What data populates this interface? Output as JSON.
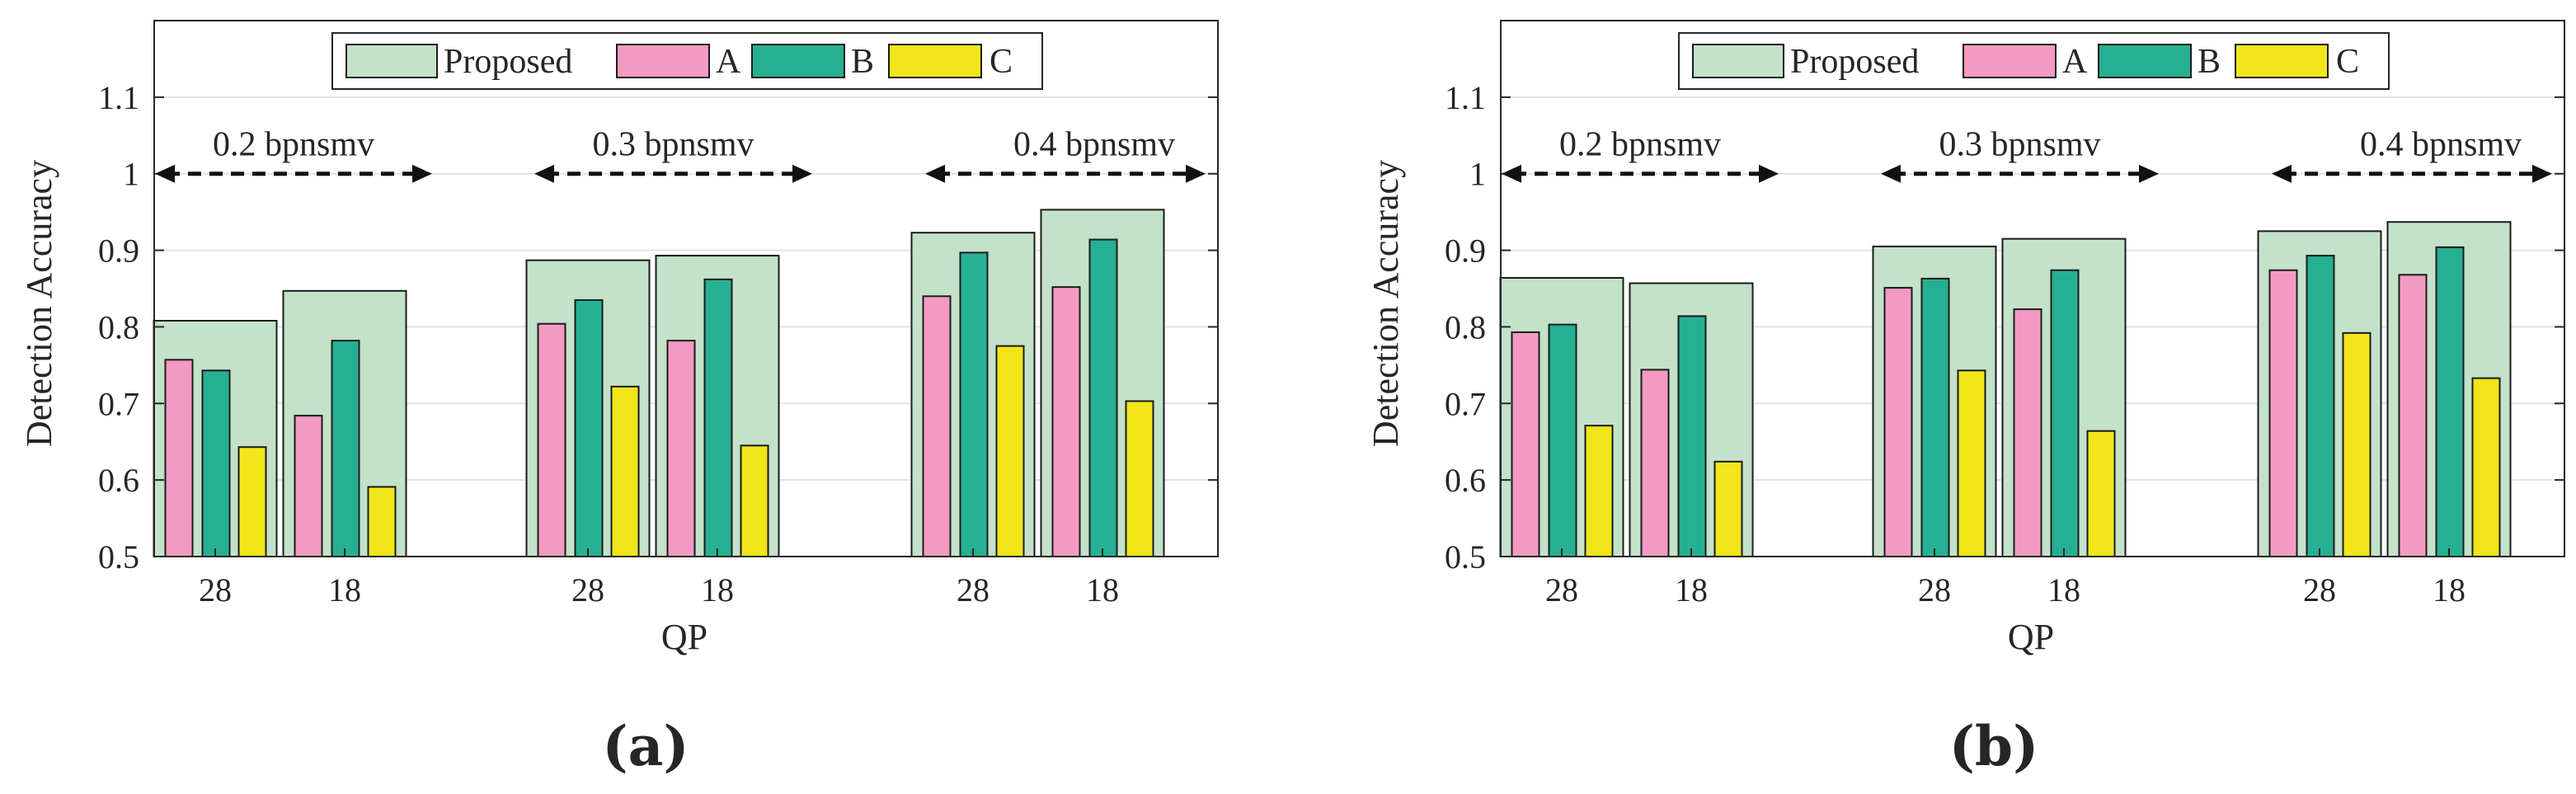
{
  "colors": {
    "proposed_fill": "#c3e2c9",
    "a_fill": "#f49ac2",
    "b_fill": "#26b093",
    "c_fill": "#f0e619",
    "axis": "#262626",
    "grid": "#e2e2e2",
    "bar_stroke": "#1a1a1a"
  },
  "chart_data": [
    {
      "type": "bar",
      "panel_label": "(a)",
      "ylabel": "Detection Accuracy",
      "xlabel": "QP",
      "ylim": [
        0.5,
        1.2
      ],
      "yticks": [
        0.5,
        0.6,
        0.7,
        0.8,
        0.9,
        1,
        1.1
      ],
      "ytick_labels": [
        "0.5",
        "0.6",
        "0.7",
        "0.8",
        "0.9",
        "1",
        "1.1"
      ],
      "grid": true,
      "legend_position": "top-center",
      "legend": [
        "Proposed",
        "A",
        "B",
        "C"
      ],
      "groups": [
        {
          "label": "0.2 bpnsmv",
          "categories": [
            "28",
            "18"
          ]
        },
        {
          "label": "0.3 bpnsmv",
          "categories": [
            "28",
            "18"
          ]
        },
        {
          "label": "0.4 bpnsmv",
          "categories": [
            "28",
            "18"
          ]
        }
      ],
      "categories": [
        "28",
        "18",
        "28",
        "18",
        "28",
        "18"
      ],
      "series": [
        {
          "name": "Proposed",
          "values": [
            0.808,
            0.847,
            0.887,
            0.893,
            0.923,
            0.953
          ]
        },
        {
          "name": "A",
          "values": [
            0.757,
            0.684,
            0.804,
            0.782,
            0.84,
            0.852
          ]
        },
        {
          "name": "B",
          "values": [
            0.743,
            0.782,
            0.835,
            0.862,
            0.897,
            0.914
          ]
        },
        {
          "name": "C",
          "values": [
            0.643,
            0.591,
            0.722,
            0.645,
            0.775,
            0.703
          ]
        }
      ]
    },
    {
      "type": "bar",
      "panel_label": "(b)",
      "ylabel": "Detection Accuracy",
      "xlabel": "QP",
      "ylim": [
        0.5,
        1.2
      ],
      "yticks": [
        0.5,
        0.6,
        0.7,
        0.8,
        0.9,
        1,
        1.1
      ],
      "ytick_labels": [
        "0.5",
        "0.6",
        "0.7",
        "0.8",
        "0.9",
        "1",
        "1.1"
      ],
      "grid": true,
      "legend_position": "top-center",
      "legend": [
        "Proposed",
        "A",
        "B",
        "C"
      ],
      "groups": [
        {
          "label": "0.2 bpnsmv",
          "categories": [
            "28",
            "18"
          ]
        },
        {
          "label": "0.3 bpnsmv",
          "categories": [
            "28",
            "18"
          ]
        },
        {
          "label": "0.4 bpnsmv",
          "categories": [
            "28",
            "18"
          ]
        }
      ],
      "categories": [
        "28",
        "18",
        "28",
        "18",
        "28",
        "18"
      ],
      "series": [
        {
          "name": "Proposed",
          "values": [
            0.864,
            0.857,
            0.905,
            0.915,
            0.925,
            0.937
          ]
        },
        {
          "name": "A",
          "values": [
            0.793,
            0.744,
            0.851,
            0.823,
            0.874,
            0.868
          ]
        },
        {
          "name": "B",
          "values": [
            0.803,
            0.814,
            0.863,
            0.874,
            0.893,
            0.904
          ]
        },
        {
          "name": "C",
          "values": [
            0.671,
            0.624,
            0.743,
            0.664,
            0.792,
            0.733
          ]
        }
      ]
    }
  ]
}
